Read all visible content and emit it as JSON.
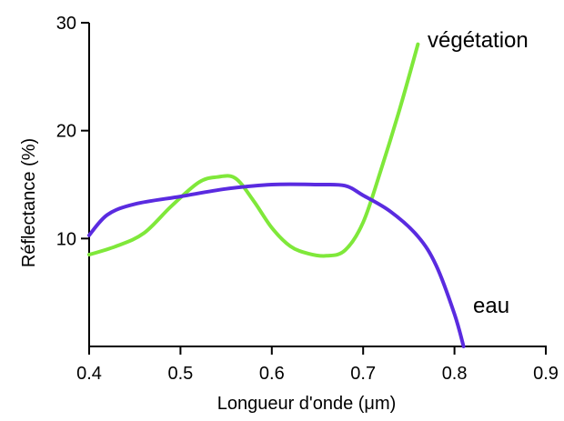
{
  "chart_data": {
    "type": "line",
    "xlabel": "Longueur d'onde   (μm)",
    "ylabel": "Réflectance (%)",
    "xlim": [
      0.4,
      0.9
    ],
    "ylim": [
      0,
      30
    ],
    "x_ticks": [
      "0.4",
      "0.5",
      "0.6",
      "0.7",
      "0.8",
      "0.9"
    ],
    "y_ticks": [
      "10",
      "20",
      "30"
    ],
    "grid": false,
    "series": [
      {
        "name": "végétation",
        "color": "#7fe83a",
        "x": [
          0.4,
          0.43,
          0.46,
          0.49,
          0.52,
          0.54,
          0.56,
          0.58,
          0.6,
          0.62,
          0.64,
          0.66,
          0.68,
          0.7,
          0.72,
          0.74,
          0.76
        ],
        "y": [
          8.5,
          9.3,
          10.5,
          13.0,
          15.2,
          15.7,
          15.6,
          13.5,
          11.0,
          9.3,
          8.6,
          8.4,
          8.9,
          11.5,
          16.5,
          22.0,
          28.0
        ]
      },
      {
        "name": "eau",
        "color": "#5a2be0",
        "x": [
          0.4,
          0.42,
          0.45,
          0.5,
          0.55,
          0.6,
          0.65,
          0.68,
          0.7,
          0.73,
          0.76,
          0.78,
          0.8,
          0.81
        ],
        "y": [
          10.3,
          12.2,
          13.2,
          13.9,
          14.6,
          15.0,
          15.0,
          14.9,
          14.0,
          12.5,
          10.2,
          7.5,
          3.0,
          0.0
        ]
      }
    ]
  }
}
